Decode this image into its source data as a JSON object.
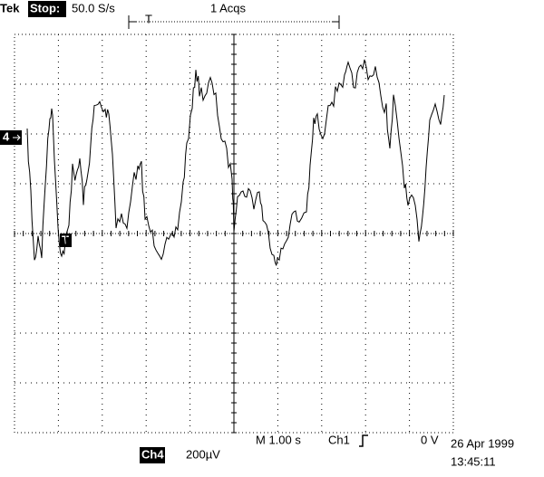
{
  "header": {
    "brand": "Tek",
    "state": "Stop:",
    "sample_rate": "50.0 S/s",
    "acquisitions": "1 Acqs",
    "trigger_position": "T"
  },
  "display": {
    "channel_marker": "4",
    "trace_trigger_marker": "T"
  },
  "footer": {
    "timebase": "M  1.00 s",
    "trigger_source": "Ch1",
    "trigger_level": "0 V",
    "channel": "Ch4",
    "channel_scale": "200µV",
    "date": "26 Apr 1999",
    "time": "13:45:11"
  }
}
